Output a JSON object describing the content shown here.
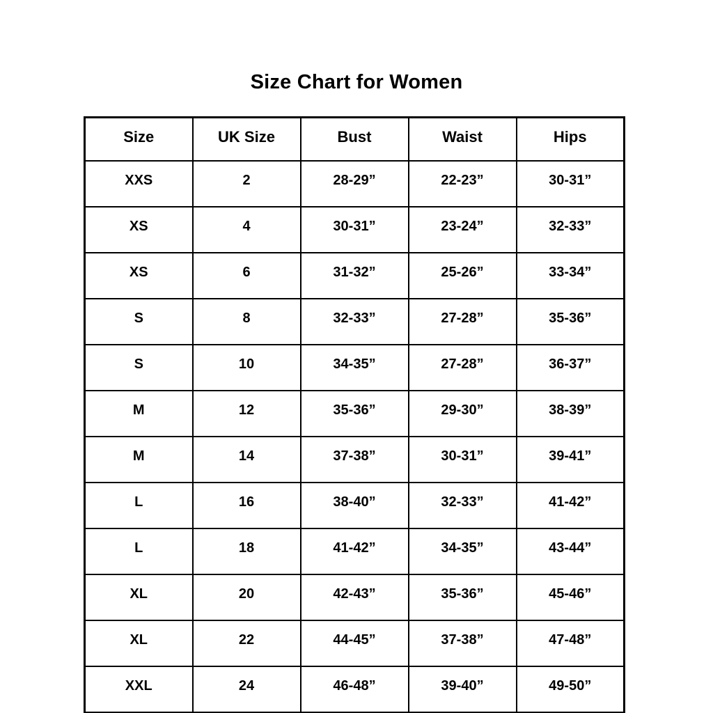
{
  "title": "Size Chart for Women",
  "chart_data": {
    "type": "table",
    "title": "Size Chart for Women",
    "columns": [
      "Size",
      "UK Size",
      "Bust",
      "Waist",
      "Hips"
    ],
    "rows": [
      [
        "XXS",
        "2",
        "28-29”",
        "22-23”",
        "30-31”"
      ],
      [
        "XS",
        "4",
        "30-31”",
        "23-24”",
        "32-33”"
      ],
      [
        "XS",
        "6",
        "31-32”",
        "25-26”",
        "33-34”"
      ],
      [
        "S",
        "8",
        "32-33”",
        "27-28”",
        "35-36”"
      ],
      [
        "S",
        "10",
        "34-35”",
        "27-28”",
        "36-37”"
      ],
      [
        "M",
        "12",
        "35-36”",
        "29-30”",
        "38-39”"
      ],
      [
        "M",
        "14",
        "37-38”",
        "30-31”",
        "39-41”"
      ],
      [
        "L",
        "16",
        "38-40”",
        "32-33”",
        "41-42”"
      ],
      [
        "L",
        "18",
        "41-42”",
        "34-35”",
        "43-44”"
      ],
      [
        "XL",
        "20",
        "42-43”",
        "35-36”",
        "45-46”"
      ],
      [
        "XL",
        "22",
        "44-45”",
        "37-38”",
        "47-48”"
      ],
      [
        "XXL",
        "24",
        "46-48”",
        "39-40”",
        "49-50”"
      ]
    ],
    "layout": {
      "grid": true,
      "border_color": "#000000",
      "background": "#ffffff",
      "text_color": "#000000"
    }
  }
}
